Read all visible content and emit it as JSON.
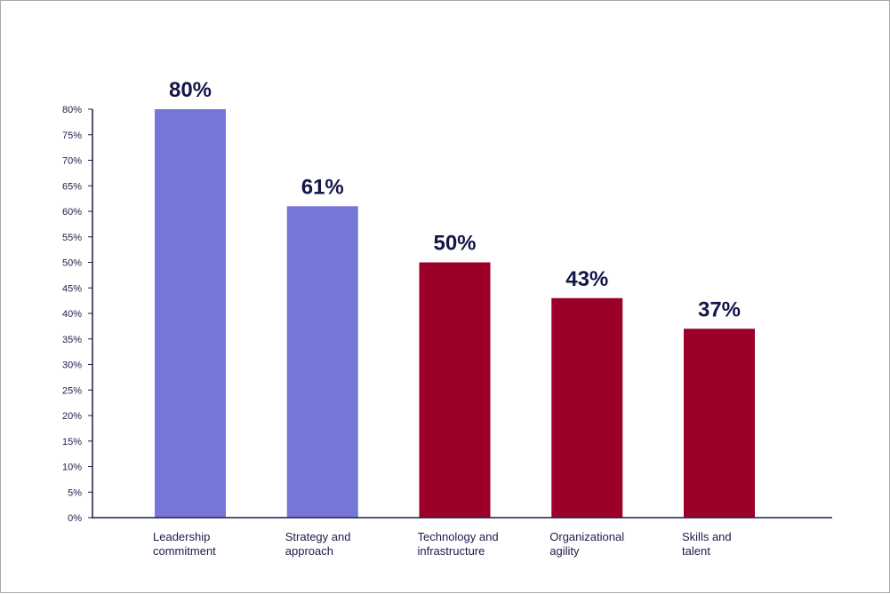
{
  "chart_data": {
    "type": "bar",
    "categories": [
      [
        "Leadership",
        "commitment"
      ],
      [
        "Strategy and",
        "approach"
      ],
      [
        "Technology and",
        "infrastructure"
      ],
      [
        "Organizational",
        "agility"
      ],
      [
        "Skills and",
        "talent"
      ]
    ],
    "values": [
      80,
      61,
      50,
      43,
      37
    ],
    "value_labels": [
      "80%",
      "61%",
      "50%",
      "43%",
      "37%"
    ],
    "bar_colors": [
      "#7676d9",
      "#7676d9",
      "#9c0029",
      "#9c0029",
      "#9c0029"
    ],
    "ylim": [
      0,
      80
    ],
    "ytick_step": 5,
    "ytick_suffix": "%",
    "axis_color": "#1b1c4a",
    "grid": false,
    "title": "",
    "xlabel": "",
    "ylabel": ""
  }
}
